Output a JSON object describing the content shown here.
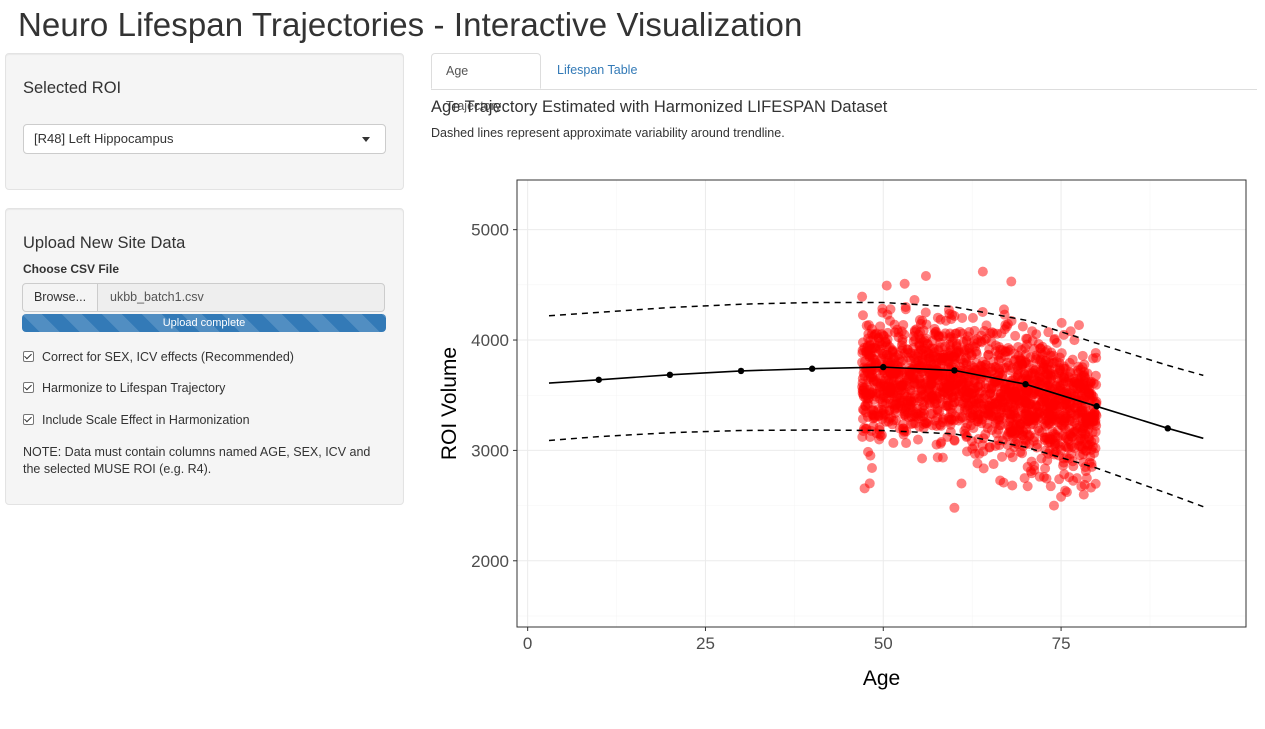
{
  "app": {
    "title": "Neuro Lifespan Trajectories - Interactive Visualization"
  },
  "roi_panel": {
    "title": "Selected ROI",
    "select_value": "[R48] Left Hippocampus"
  },
  "upload_panel": {
    "title": "Upload New Site Data",
    "file_label": "Choose CSV File",
    "browse_label": "Browse...",
    "file_name": "ukbb_batch1.csv",
    "progress_text": "Upload complete",
    "progress_fraction": 1.0,
    "options": [
      {
        "label": "Correct for SEX, ICV effects (Recommended)",
        "checked": true
      },
      {
        "label": "Harmonize to Lifespan Trajectory",
        "checked": true
      },
      {
        "label": "Include Scale Effect in Harmonization",
        "checked": true
      }
    ],
    "note": "NOTE: Data must contain columns named AGE, SEX, ICV and the selected MUSE ROI (e.g. R4)."
  },
  "tabs": [
    {
      "label": "Age Trajectory",
      "active": true
    },
    {
      "label": "Lifespan Table",
      "active": false
    }
  ],
  "main": {
    "plot_title": "Age Trajectory Estimated with Harmonized LIFESPAN Dataset",
    "plot_subtitle": "Dashed lines represent approximate variability around trendline."
  },
  "colors": {
    "points": "#ff0000",
    "trend": "#000000",
    "link": "#337ab7",
    "progress": "#337ab7"
  },
  "chart_data": {
    "type": "scatter",
    "xlabel": "Age",
    "ylabel": "ROI Volume",
    "xlim": [
      -1.5,
      101
    ],
    "ylim": [
      1400,
      5450
    ],
    "x_ticks": [
      0,
      25,
      50,
      75
    ],
    "y_ticks": [
      2000,
      3000,
      4000,
      5000
    ],
    "grid": true,
    "scatter": {
      "x_range": [
        47,
        80
      ],
      "y_center": 3600,
      "y_spread": 280,
      "n_points": 1800,
      "outliers": [
        [
          60,
          2480
        ],
        [
          74,
          2500
        ],
        [
          75,
          2580
        ],
        [
          61,
          2700
        ],
        [
          56,
          4580
        ],
        [
          64,
          4620
        ],
        [
          68,
          4530
        ]
      ]
    },
    "trend": {
      "x": [
        3,
        10,
        20,
        30,
        40,
        50,
        60,
        70,
        80,
        90,
        95
      ],
      "y": [
        3610,
        3640,
        3685,
        3720,
        3740,
        3755,
        3725,
        3600,
        3400,
        3200,
        3110
      ]
    },
    "trend_markers": {
      "x": [
        10,
        20,
        30,
        40,
        50,
        60,
        70,
        80,
        90
      ],
      "y": [
        3640,
        3685,
        3720,
        3740,
        3755,
        3725,
        3600,
        3400,
        3200
      ]
    },
    "upper": {
      "x": [
        3,
        10,
        20,
        30,
        40,
        50,
        60,
        70,
        80,
        90,
        95
      ],
      "y": [
        4220,
        4250,
        4295,
        4325,
        4340,
        4340,
        4300,
        4180,
        3970,
        3770,
        3680
      ]
    },
    "lower": {
      "x": [
        3,
        10,
        20,
        30,
        40,
        50,
        60,
        70,
        80,
        90,
        95
      ],
      "y": [
        3090,
        3125,
        3160,
        3180,
        3185,
        3180,
        3150,
        3030,
        2840,
        2610,
        2490
      ]
    }
  }
}
